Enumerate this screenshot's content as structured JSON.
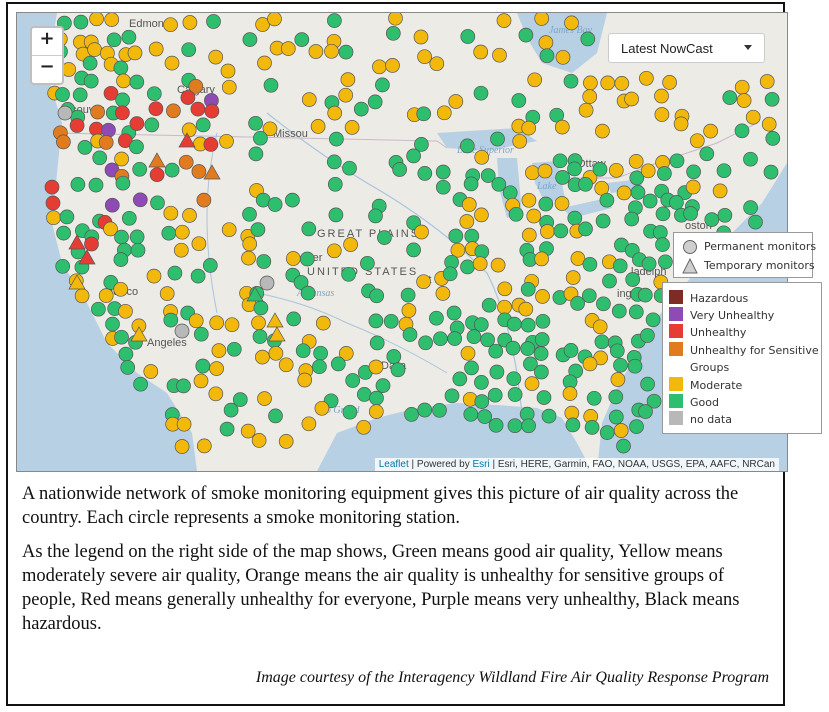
{
  "map": {
    "zoom_in": "+",
    "zoom_out": "−",
    "layer_select": {
      "value": "Latest NowCast"
    },
    "place_labels": [
      "Edmont",
      "Calgary",
      "ncouver",
      "Missou",
      "Lake Superior",
      "James Bay",
      "Ottaw",
      "Lake",
      "oston",
      "GREAT PLAINS",
      "UNITED STATES",
      "Denver",
      "St L",
      "ncisco",
      "Arkansas",
      "ladelph",
      "ington",
      "Angeles",
      "Dalla",
      "Rio Grand"
    ],
    "monitor_types": [
      {
        "shape": "circle",
        "label": "Permanent monitors"
      },
      {
        "shape": "triangle",
        "label": "Temporary monitors"
      }
    ],
    "legend": [
      {
        "label": "Hazardous",
        "color": "#7e2b26"
      },
      {
        "label": "Very Unhealthy",
        "color": "#8e4ab5"
      },
      {
        "label": "Unhealthy",
        "color": "#e53d34"
      },
      {
        "label": "Unhealthy for Sensitive Groups",
        "color": "#e07b1f"
      },
      {
        "label": "Moderate",
        "color": "#f2b90c"
      },
      {
        "label": "Good",
        "color": "#2ebf6e"
      },
      {
        "label": "no data",
        "color": "#b8b8b8"
      }
    ],
    "attribution": {
      "leaflet": "Leaflet",
      "powered": " | Powered by ",
      "esri": "Esri",
      "rest": " | Esri, HERE, Garmin, FAO, NOAA, USGS, EPA, AAFC, NRCan"
    }
  },
  "caption": {
    "p1": "A nationwide network of smoke monitoring equipment gives this picture of air quality across the country.  Each circle represents a smoke monitoring station.",
    "p2": "As the legend on the right side of the map shows, Green means good air quality, Yellow means moderately severe air quality, Orange means the air quality is unhealthy for sensitive groups of people, Red means generally unhealthy for everyone, Purple means very unhealthy, Black means hazardous.",
    "credit": "Image courtesy of the Interagency Wildland Fire Air Quality Response Program"
  }
}
